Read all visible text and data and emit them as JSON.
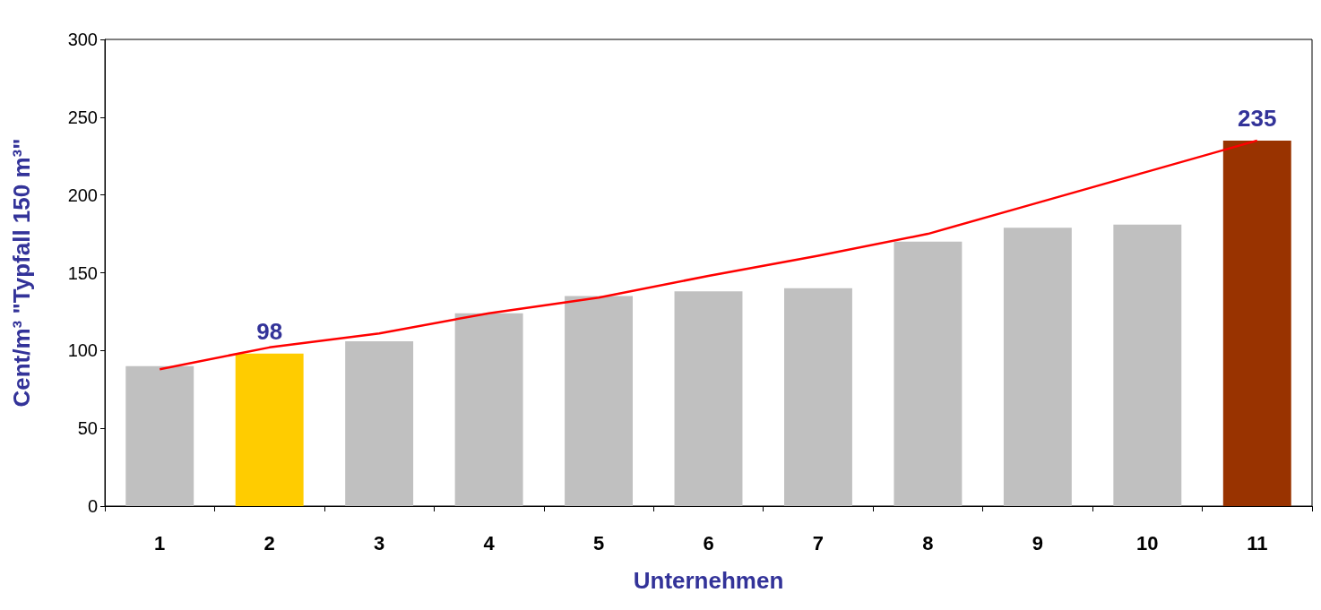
{
  "chart_data": {
    "type": "bar",
    "xlabel": "Unternehmen",
    "ylabel": "Cent/m³ \"Typfall 150 m³\"",
    "categories": [
      "1",
      "2",
      "3",
      "4",
      "5",
      "6",
      "7",
      "8",
      "9",
      "10",
      "11"
    ],
    "series": [
      {
        "colors": [
          "#c0c0c0",
          "#ffcc00",
          "#c0c0c0",
          "#c0c0c0",
          "#c0c0c0",
          "#c0c0c0",
          "#c0c0c0",
          "#c0c0c0",
          "#c0c0c0",
          "#c0c0c0",
          "#993300"
        ],
        "values": [
          90,
          98,
          106,
          124,
          135,
          138,
          140,
          170,
          179,
          181,
          235
        ],
        "value_labels": [
          null,
          "98",
          null,
          null,
          null,
          null,
          null,
          null,
          null,
          null,
          "235"
        ]
      },
      {
        "type": "line",
        "color": "#ff0000",
        "marker": "none",
        "values": [
          88,
          102,
          111,
          124,
          134,
          148,
          161,
          175,
          195,
          215,
          235
        ]
      }
    ],
    "ylim": [
      0,
      300
    ],
    "yticks": [
      0,
      50,
      100,
      150,
      200,
      250,
      300
    ],
    "grid": false
  }
}
